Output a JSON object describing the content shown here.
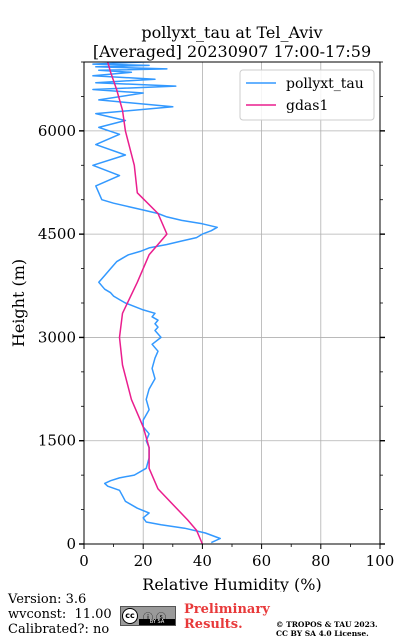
{
  "chart_data": {
    "type": "line",
    "title": "pollyxt_tau at Tel_Aviv",
    "subtitle": "[Averaged] 20230907 17:00-17:59",
    "xlabel": "Relative Humidity (%)",
    "ylabel": "Height (m)",
    "xlim": [
      0,
      100
    ],
    "ylim": [
      0,
      7000
    ],
    "xticks": [
      0,
      20,
      40,
      60,
      80,
      100
    ],
    "yticks": [
      0,
      1500,
      3000,
      4500,
      6000
    ],
    "grid": true,
    "legend_position": "top-right",
    "series": [
      {
        "name": "pollyxt_tau",
        "color": "#3399ff",
        "x": [
          43,
          46,
          41,
          34,
          26,
          21,
          20,
          22,
          18,
          14,
          13,
          12,
          8,
          7,
          9,
          12,
          17,
          21,
          22,
          22,
          21,
          22,
          20,
          20,
          22,
          21,
          22,
          24,
          23,
          24,
          25,
          23,
          26,
          24,
          25,
          24,
          25,
          23,
          24,
          20,
          17,
          14,
          12,
          10,
          9,
          7,
          6,
          5,
          7,
          9,
          11,
          13,
          15,
          19,
          22,
          28,
          33,
          38,
          40,
          43,
          45,
          40,
          33,
          28,
          25,
          20,
          15,
          10,
          6,
          4,
          12,
          3,
          14,
          4,
          12,
          5,
          14,
          4,
          30,
          5,
          20,
          3,
          31,
          4,
          24,
          3,
          16,
          5,
          28,
          4,
          22,
          3,
          14,
          34
        ],
        "y": [
          20,
          80,
          160,
          230,
          280,
          320,
          380,
          450,
          520,
          620,
          700,
          780,
          840,
          880,
          920,
          960,
          1000,
          1100,
          1250,
          1400,
          1500,
          1600,
          1700,
          1800,
          1950,
          2100,
          2250,
          2400,
          2550,
          2700,
          2800,
          2900,
          3000,
          3100,
          3150,
          3200,
          3250,
          3300,
          3350,
          3400,
          3450,
          3500,
          3550,
          3600,
          3650,
          3700,
          3750,
          3800,
          3900,
          4000,
          4100,
          4150,
          4200,
          4250,
          4300,
          4350,
          4400,
          4450,
          4500,
          4550,
          4600,
          4650,
          4700,
          4750,
          4800,
          4850,
          4900,
          4950,
          5000,
          5200,
          5350,
          5500,
          5650,
          5800,
          5950,
          6050,
          6150,
          6250,
          6350,
          6450,
          6550,
          6600,
          6650,
          6700,
          6750,
          6800,
          6850,
          6880,
          6900,
          6930,
          6950,
          6970,
          6990,
          7020
        ]
      },
      {
        "name": "gdas1",
        "color": "#ea1e8e",
        "x": [
          40,
          38,
          35,
          25,
          22,
          22,
          20,
          16,
          13,
          12,
          13,
          18,
          22,
          28,
          25,
          18,
          17,
          14,
          13,
          11,
          9,
          8
        ],
        "y": [
          0,
          200,
          350,
          800,
          1100,
          1400,
          1700,
          2100,
          2600,
          3000,
          3350,
          3800,
          4200,
          4500,
          4800,
          5100,
          5500,
          6000,
          6300,
          6600,
          6850,
          7000
        ]
      }
    ]
  },
  "footer": {
    "version": "Version: 3.6",
    "wvconst": "wvconst:  11.00",
    "calibrated": "Calibrated?: no",
    "preliminary_line1": "Preliminary",
    "preliminary_line2": "Results.",
    "copyright_line1": "© TROPOS & TAU 2023.",
    "copyright_line2": "CC BY SA 4.0 License."
  }
}
